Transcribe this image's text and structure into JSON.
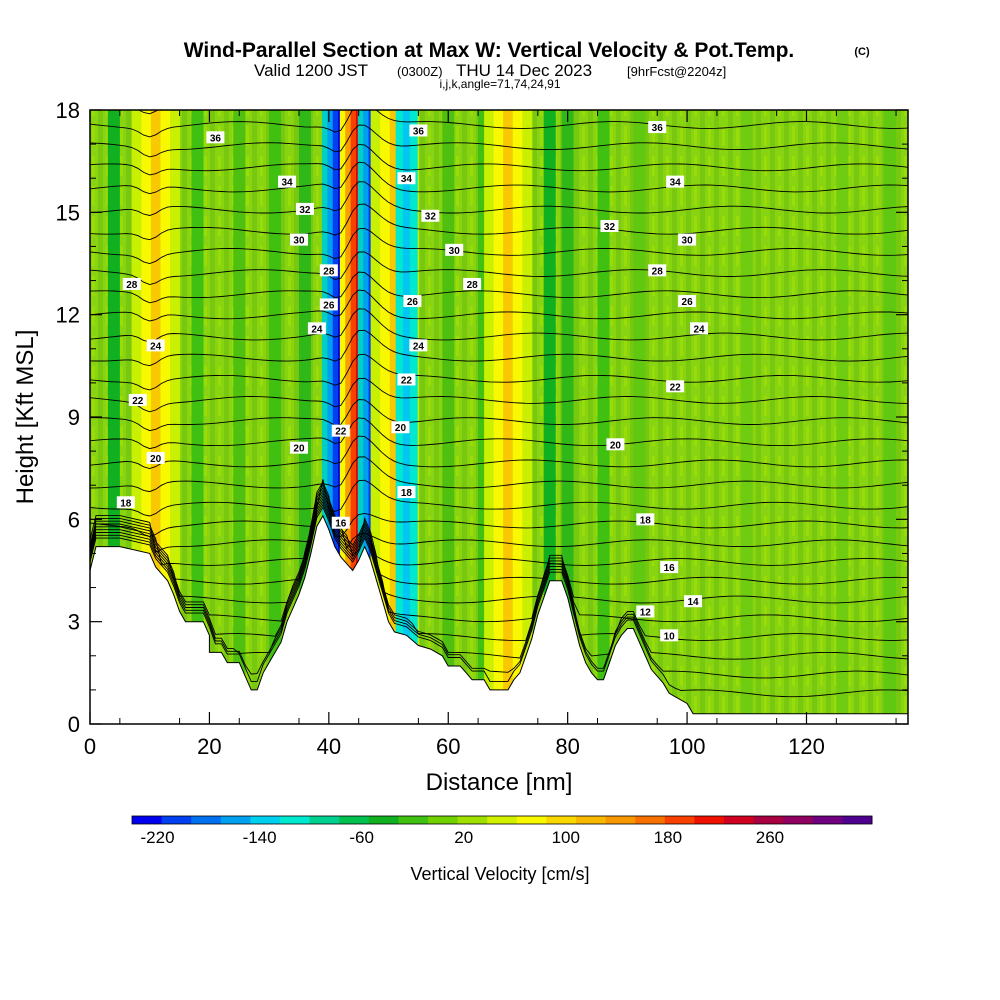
{
  "chart_data": {
    "type": "heatmap",
    "title": "Wind-Parallel Section at Max W: Vertical Velocity & Pot.Temp.",
    "copyright_mark": "(C)",
    "subtitle_main": "Valid 1200 JST",
    "subtitle_utc": "(0300Z)",
    "subtitle_date": "THU 14 Dec 2023",
    "subtitle_run": "[9hrFcst@2204z]",
    "subtitle_indices": "i,j,k,angle=71,74,24,91",
    "xlabel": "Distance [nm]",
    "ylabel": "Height [Kft MSL]",
    "xlim": [
      0,
      137
    ],
    "ylim": [
      0,
      18
    ],
    "x_ticks": [
      "0",
      "20",
      "40",
      "60",
      "80",
      "100",
      "120"
    ],
    "y_ticks": [
      "0",
      "3",
      "6",
      "9",
      "12",
      "15",
      "18"
    ],
    "colorbar": {
      "label": "Vertical Velocity [cm/s]",
      "tick_labels": [
        "-220",
        "-140",
        "-60",
        "20",
        "100",
        "180",
        "260"
      ],
      "colors": [
        "#0000f0",
        "#0040f0",
        "#0070f0",
        "#00a0f0",
        "#00d0f0",
        "#00e8d0",
        "#00d090",
        "#00c050",
        "#10b020",
        "#40c010",
        "#70d000",
        "#a0e000",
        "#d0f000",
        "#f8f800",
        "#f8d800",
        "#f8b800",
        "#f89800",
        "#f87000",
        "#f84000",
        "#f01000",
        "#d00020",
        "#a80040",
        "#900060",
        "#700080",
        "#500090"
      ]
    },
    "velocity_features": [
      {
        "x": 11,
        "type": "updraft_band",
        "peak": "yellow-orange"
      },
      {
        "x": 42,
        "type": "downdraft_core",
        "peak": "blue"
      },
      {
        "x": 45,
        "type": "updraft_core",
        "peak": "red"
      },
      {
        "x": 48,
        "type": "downdraft_core",
        "peak": "blue"
      },
      {
        "x": 51,
        "type": "updraft_band",
        "peak": "orange"
      },
      {
        "x": 53,
        "type": "downdraft_band",
        "peak": "cyan"
      },
      {
        "x": 70,
        "type": "updraft_band",
        "peak": "yellow"
      }
    ],
    "theta_contour_labels": [
      {
        "v": "36",
        "x": 21,
        "y": 17.2
      },
      {
        "v": "36",
        "x": 55,
        "y": 17.4
      },
      {
        "v": "36",
        "x": 95,
        "y": 17.5
      },
      {
        "v": "34",
        "x": 33,
        "y": 15.9
      },
      {
        "v": "34",
        "x": 53,
        "y": 16.0
      },
      {
        "v": "34",
        "x": 98,
        "y": 15.9
      },
      {
        "v": "32",
        "x": 36,
        "y": 15.1
      },
      {
        "v": "32",
        "x": 57,
        "y": 14.9
      },
      {
        "v": "32",
        "x": 87,
        "y": 14.6
      },
      {
        "v": "30",
        "x": 35,
        "y": 14.2
      },
      {
        "v": "30",
        "x": 61,
        "y": 13.9
      },
      {
        "v": "30",
        "x": 100,
        "y": 14.2
      },
      {
        "v": "28",
        "x": 40,
        "y": 13.3
      },
      {
        "v": "28",
        "x": 7,
        "y": 12.9
      },
      {
        "v": "28",
        "x": 64,
        "y": 12.9
      },
      {
        "v": "28",
        "x": 95,
        "y": 13.3
      },
      {
        "v": "26",
        "x": 40,
        "y": 12.3
      },
      {
        "v": "26",
        "x": 54,
        "y": 12.4
      },
      {
        "v": "26",
        "x": 100,
        "y": 12.4
      },
      {
        "v": "24",
        "x": 38,
        "y": 11.6
      },
      {
        "v": "24",
        "x": 11,
        "y": 11.1
      },
      {
        "v": "24",
        "x": 55,
        "y": 11.1
      },
      {
        "v": "24",
        "x": 102,
        "y": 11.6
      },
      {
        "v": "22",
        "x": 53,
        "y": 10.1
      },
      {
        "v": "22",
        "x": 8,
        "y": 9.5
      },
      {
        "v": "22",
        "x": 98,
        "y": 9.9
      },
      {
        "v": "22",
        "x": 42,
        "y": 8.6
      },
      {
        "v": "20",
        "x": 52,
        "y": 8.7
      },
      {
        "v": "20",
        "x": 11,
        "y": 7.8
      },
      {
        "v": "20",
        "x": 35,
        "y": 8.1
      },
      {
        "v": "20",
        "x": 88,
        "y": 8.2
      },
      {
        "v": "18",
        "x": 6,
        "y": 6.5
      },
      {
        "v": "18",
        "x": 53,
        "y": 6.8
      },
      {
        "v": "18",
        "x": 93,
        "y": 6.0
      },
      {
        "v": "16",
        "x": 42,
        "y": 5.9
      },
      {
        "v": "16",
        "x": 97,
        "y": 4.6
      },
      {
        "v": "14",
        "x": 101,
        "y": 3.6
      },
      {
        "v": "12",
        "x": 93,
        "y": 3.3
      },
      {
        "v": "10",
        "x": 97,
        "y": 2.6
      }
    ]
  }
}
